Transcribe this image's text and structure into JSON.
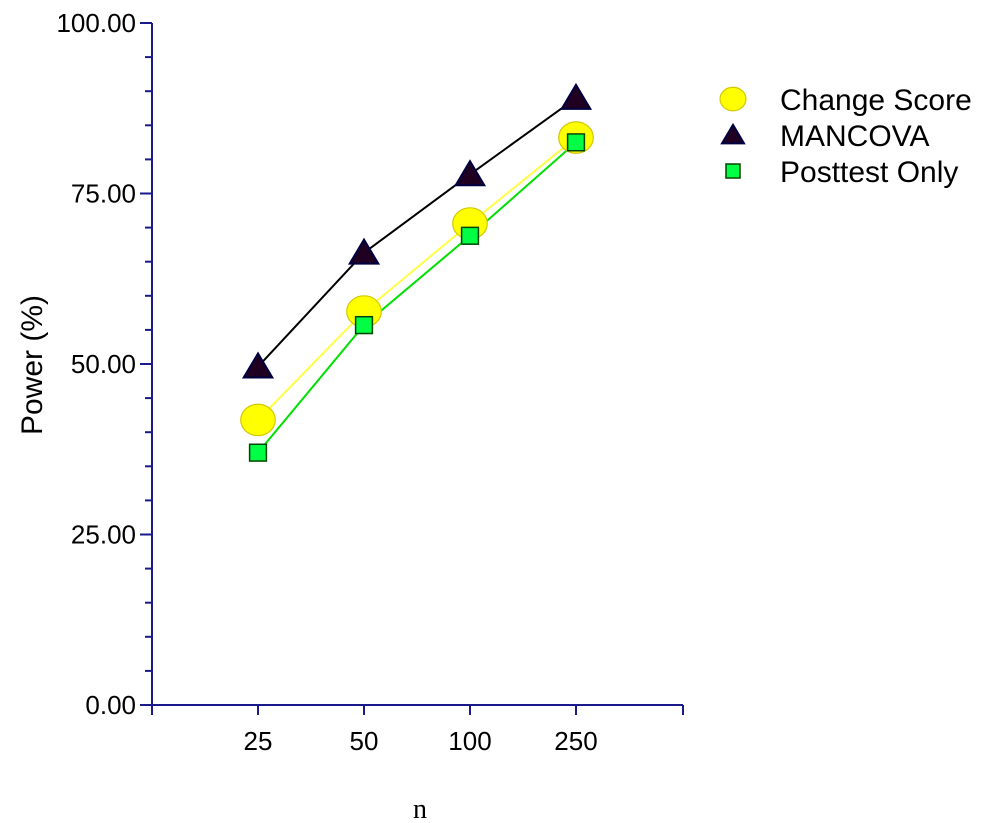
{
  "chart_data": {
    "type": "line",
    "xlabel": "n",
    "ylabel": "Power (%)",
    "categories": [
      "25",
      "50",
      "100",
      "250"
    ],
    "ylim": [
      0,
      100
    ],
    "yticks": [
      "0.00",
      "25.00",
      "50.00",
      "75.00",
      "100.00"
    ],
    "grid": false,
    "legend_position": "top-right",
    "series": [
      {
        "name": "Change Score",
        "values": [
          41.8,
          57.7,
          70.6,
          83.2
        ],
        "marker": "circle",
        "line_color": "#ffff44",
        "marker_fill": "#ffff00",
        "marker_stroke": "#d4c800"
      },
      {
        "name": "MANCOVA",
        "values": [
          49.6,
          66.3,
          77.8,
          89.0
        ],
        "marker": "triangle",
        "line_color": "#000000",
        "marker_fill": "#200020",
        "marker_stroke": "#000040"
      },
      {
        "name": "Posttest Only",
        "values": [
          37.0,
          55.7,
          68.8,
          82.5
        ],
        "marker": "square",
        "line_color": "#00e000",
        "marker_fill": "#00ff44",
        "marker_stroke": "#004400"
      }
    ]
  }
}
